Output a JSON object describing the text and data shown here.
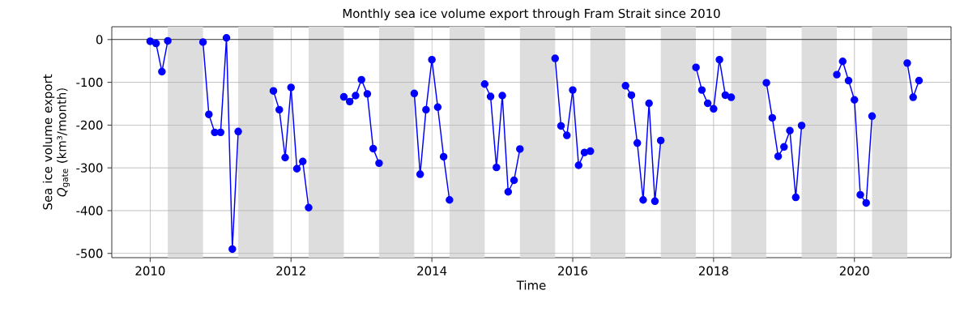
{
  "chart_data": {
    "type": "line",
    "title": "Monthly sea ice volume export through Fram Strait since 2010",
    "xlabel": "Time",
    "ylabel": "Sea ice volume export *Q*$_{gate}$ (km³/month)",
    "xlim": [
      "2009-06-15",
      "2021-05-15"
    ],
    "xticks": [
      "2010",
      "2012",
      "2014",
      "2016",
      "2018",
      "2020"
    ],
    "ylim": [
      -510,
      30
    ],
    "yticks": [
      0,
      -100,
      -200,
      -300,
      -400,
      -500
    ],
    "grid": true,
    "marker": "circle",
    "line_style": "solid",
    "ref_lines": [
      {
        "axis": "y",
        "value": 0,
        "color": "#000000"
      }
    ],
    "bands": [
      {
        "axis": "x",
        "from": "2010-04",
        "to": "2010-10",
        "color": "#dddddd"
      },
      {
        "axis": "x",
        "from": "2011-04",
        "to": "2011-10",
        "color": "#dddddd"
      },
      {
        "axis": "x",
        "from": "2012-04",
        "to": "2012-10",
        "color": "#dddddd"
      },
      {
        "axis": "x",
        "from": "2013-04",
        "to": "2013-10",
        "color": "#dddddd"
      },
      {
        "axis": "x",
        "from": "2014-04",
        "to": "2014-10",
        "color": "#dddddd"
      },
      {
        "axis": "x",
        "from": "2015-04",
        "to": "2015-10",
        "color": "#dddddd"
      },
      {
        "axis": "x",
        "from": "2016-04",
        "to": "2016-10",
        "color": "#dddddd"
      },
      {
        "axis": "x",
        "from": "2017-04",
        "to": "2017-10",
        "color": "#dddddd"
      },
      {
        "axis": "x",
        "from": "2018-04",
        "to": "2018-10",
        "color": "#dddddd"
      },
      {
        "axis": "x",
        "from": "2019-04",
        "to": "2019-10",
        "color": "#dddddd"
      },
      {
        "axis": "x",
        "from": "2020-04",
        "to": "2020-10",
        "color": "#dddddd"
      }
    ],
    "x": [
      "2010-01",
      "2010-02",
      "2010-03",
      "2010-04",
      "2010-07",
      "2010-10",
      "2010-11",
      "2010-12",
      "2011-01",
      "2011-02",
      "2011-03",
      "2011-04",
      "2011-07",
      "2011-10",
      "2011-11",
      "2011-12",
      "2012-01",
      "2012-02",
      "2012-03",
      "2012-04",
      "2012-07",
      "2012-10",
      "2012-11",
      "2012-12",
      "2013-01",
      "2013-02",
      "2013-03",
      "2013-04",
      "2013-07",
      "2013-10",
      "2013-11",
      "2013-12",
      "2014-01",
      "2014-02",
      "2014-03",
      "2014-04",
      "2014-07",
      "2014-10",
      "2014-11",
      "2014-12",
      "2015-01",
      "2015-02",
      "2015-03",
      "2015-04",
      "2015-07",
      "2015-10",
      "2015-11",
      "2015-12",
      "2016-01",
      "2016-02",
      "2016-03",
      "2016-04",
      "2016-07",
      "2016-10",
      "2016-11",
      "2016-12",
      "2017-01",
      "2017-02",
      "2017-03",
      "2017-04",
      "2017-07",
      "2017-10",
      "2017-11",
      "2017-12",
      "2018-01",
      "2018-02",
      "2018-03",
      "2018-04",
      "2018-07",
      "2018-10",
      "2018-11",
      "2018-12",
      "2019-01",
      "2019-02",
      "2019-03",
      "2019-04",
      "2019-07",
      "2019-10",
      "2019-11",
      "2019-12",
      "2020-01",
      "2020-02",
      "2020-03",
      "2020-04",
      "2020-07",
      "2020-10",
      "2020-11",
      "2020-12"
    ],
    "series": [
      {
        "color": "#0000ff",
        "values": [
          -4,
          -9,
          -75,
          -3,
          null,
          -6,
          -175,
          -217,
          -217,
          4,
          -490,
          -215,
          null,
          -120,
          -164,
          -276,
          -112,
          -302,
          -285,
          -393,
          null,
          -134,
          -145,
          -131,
          -94,
          -127,
          -255,
          -289,
          null,
          -126,
          -315,
          -164,
          -47,
          -158,
          -274,
          -375,
          null,
          -104,
          -133,
          -299,
          -131,
          -356,
          -329,
          -256,
          null,
          -44,
          -202,
          -224,
          -118,
          -294,
          -264,
          -261,
          null,
          -108,
          -130,
          -242,
          -375,
          -149,
          -378,
          -236,
          null,
          -65,
          -118,
          -149,
          -162,
          -47,
          -130,
          -135,
          null,
          -101,
          -183,
          -273,
          -251,
          -213,
          -369,
          -201,
          null,
          -82,
          -51,
          -96,
          -141,
          -363,
          -382,
          -179,
          null,
          -55,
          -135,
          -96
        ]
      }
    ]
  }
}
